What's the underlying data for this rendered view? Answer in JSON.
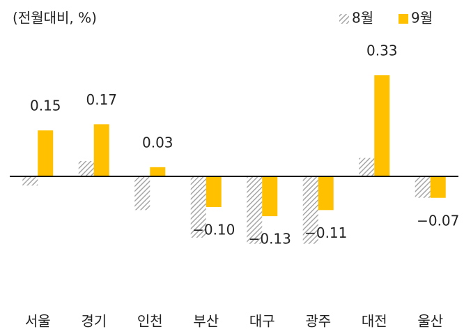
{
  "chart_data": {
    "type": "bar",
    "subtitle": "(전월대비, %)",
    "categories": [
      "서울",
      "경기",
      "인천",
      "부산",
      "대구",
      "광주",
      "대전",
      "울산"
    ],
    "series": [
      {
        "name": "8월",
        "color": "#a6a6a6",
        "pattern": "hatch",
        "values": [
          -0.03,
          0.05,
          -0.11,
          -0.2,
          -0.22,
          -0.22,
          0.06,
          -0.07
        ]
      },
      {
        "name": "9월",
        "color": "#ffc000",
        "values": [
          0.15,
          0.17,
          0.03,
          -0.1,
          -0.13,
          -0.11,
          0.33,
          -0.07
        ],
        "value_labels": [
          "0.15",
          "0.17",
          "0.03",
          "−0.10",
          "−0.13",
          "−0.11",
          "0.33",
          "−0.07"
        ]
      }
    ],
    "legend": "top-right"
  }
}
